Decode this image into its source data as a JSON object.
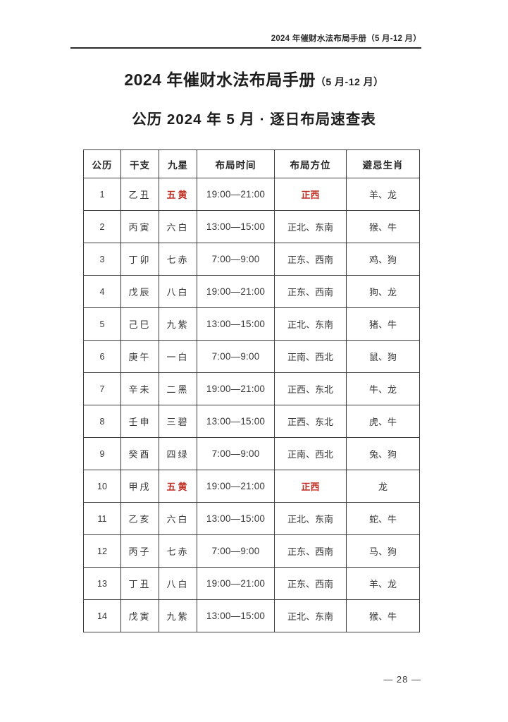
{
  "page_header": {
    "text": "2024 年催财水法布局手册（5 月-12 月）"
  },
  "title": {
    "main": "2024 年催财水法布局手册",
    "suffix": "（5 月-12 月）"
  },
  "subtitle": "公历 2024 年 5 月 · 逐日布局速查表",
  "colors": {
    "accent_red": "#bf2d23",
    "text": "#303030",
    "border": "#3d3d3d",
    "background": "#ffffff"
  },
  "table": {
    "headers": {
      "date": "公历",
      "ganzhi": "干支",
      "star": "九星",
      "time": "布局时间",
      "direction": "布局方位",
      "zodiac": "避忌生肖"
    },
    "rows": [
      {
        "date": "1",
        "ganzhi": "乙丑",
        "star": "五黄",
        "time": "19:00—21:00",
        "direction": "正西",
        "zodiac": "羊、龙",
        "highlight": true
      },
      {
        "date": "2",
        "ganzhi": "丙寅",
        "star": "六白",
        "time": "13:00—15:00",
        "direction": "正北、东南",
        "zodiac": "猴、牛",
        "highlight": false
      },
      {
        "date": "3",
        "ganzhi": "丁卯",
        "star": "七赤",
        "time": "7:00—9:00",
        "direction": "正东、西南",
        "zodiac": "鸡、狗",
        "highlight": false
      },
      {
        "date": "4",
        "ganzhi": "戊辰",
        "star": "八白",
        "time": "19:00—21:00",
        "direction": "正东、西南",
        "zodiac": "狗、龙",
        "highlight": false
      },
      {
        "date": "5",
        "ganzhi": "己巳",
        "star": "九紫",
        "time": "13:00—15:00",
        "direction": "正北、东南",
        "zodiac": "猪、牛",
        "highlight": false
      },
      {
        "date": "6",
        "ganzhi": "庚午",
        "star": "一白",
        "time": "7:00—9:00",
        "direction": "正南、西北",
        "zodiac": "鼠、狗",
        "highlight": false
      },
      {
        "date": "7",
        "ganzhi": "辛未",
        "star": "二黑",
        "time": "19:00—21:00",
        "direction": "正西、东北",
        "zodiac": "牛、龙",
        "highlight": false
      },
      {
        "date": "8",
        "ganzhi": "壬申",
        "star": "三碧",
        "time": "13:00—15:00",
        "direction": "正西、东北",
        "zodiac": "虎、牛",
        "highlight": false
      },
      {
        "date": "9",
        "ganzhi": "癸酉",
        "star": "四绿",
        "time": "7:00—9:00",
        "direction": "正南、西北",
        "zodiac": "兔、狗",
        "highlight": false
      },
      {
        "date": "10",
        "ganzhi": "甲戌",
        "star": "五黄",
        "time": "19:00—21:00",
        "direction": "正西",
        "zodiac": "龙",
        "highlight": true
      },
      {
        "date": "11",
        "ganzhi": "乙亥",
        "star": "六白",
        "time": "13:00—15:00",
        "direction": "正北、东南",
        "zodiac": "蛇、牛",
        "highlight": false
      },
      {
        "date": "12",
        "ganzhi": "丙子",
        "star": "七赤",
        "time": "7:00—9:00",
        "direction": "正东、西南",
        "zodiac": "马、狗",
        "highlight": false
      },
      {
        "date": "13",
        "ganzhi": "丁丑",
        "star": "八白",
        "time": "19:00—21:00",
        "direction": "正东、西南",
        "zodiac": "羊、龙",
        "highlight": false
      },
      {
        "date": "14",
        "ganzhi": "戊寅",
        "star": "九紫",
        "time": "13:00—15:00",
        "direction": "正北、东南",
        "zodiac": "猴、牛",
        "highlight": false
      }
    ]
  },
  "footer": {
    "page_number": "— 28 —"
  }
}
